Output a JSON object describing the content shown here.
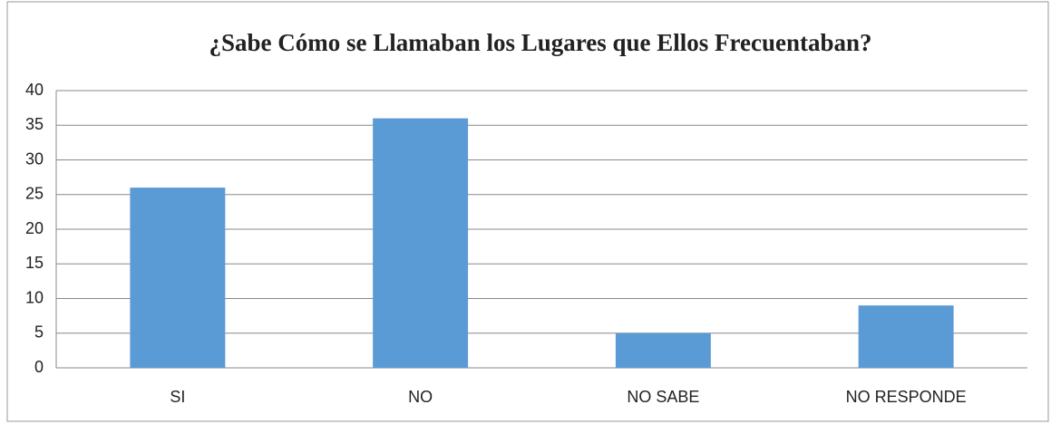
{
  "chart_data": {
    "type": "bar",
    "title": "¿Sabe Cómo se Llamaban los Lugares que Ellos Frecuentaban?",
    "categories": [
      "SI",
      "NO",
      "NO SABE",
      "NO RESPONDE"
    ],
    "values": [
      26,
      36,
      5,
      9
    ],
    "color": "#5b9bd5",
    "ylim": [
      0,
      40
    ],
    "yticks": [
      0,
      5,
      10,
      15,
      20,
      25,
      30,
      35,
      40
    ],
    "grid": true
  }
}
